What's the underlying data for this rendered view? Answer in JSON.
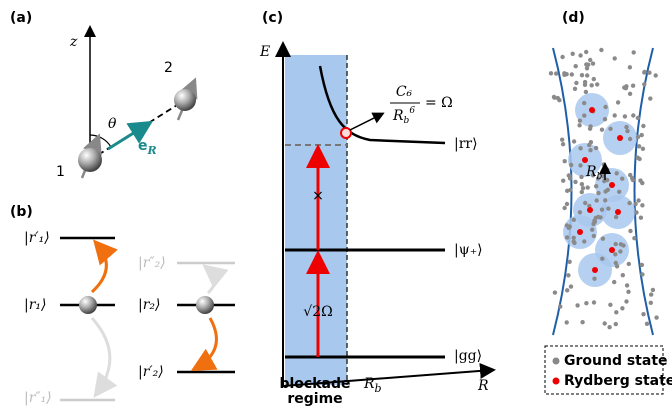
{
  "panels": {
    "a": "(a)",
    "b": "(b)",
    "c": "(c)",
    "d": "(d)"
  },
  "a": {
    "z": "z",
    "theta": "θ",
    "atom2": "2",
    "atom1": "1",
    "eR": {
      "base": "e",
      "sub": "R"
    }
  },
  "b": {
    "left": [
      "|r′₁⟩",
      "|r₁⟩",
      "|r″₁⟩"
    ],
    "right": [
      "|r″₂⟩",
      "|r₂⟩",
      "|r′₂⟩"
    ]
  },
  "c": {
    "E": "E",
    "R": "R",
    "rr": "|rr⟩",
    "psi": "|ψ₊⟩",
    "gg": "|gg⟩",
    "rabi": "√2Ω",
    "cross": "×",
    "formula": {
      "num": "C₆",
      "den": {
        "base": "R",
        "sub": "b",
        "sup": "6"
      },
      "rhs": "= Ω"
    },
    "blockade": [
      "blockade",
      "regime"
    ],
    "Rb": {
      "base": "R",
      "sub": "b"
    }
  },
  "d": {
    "Rb": {
      "base": "R",
      "sub": "b"
    },
    "legend": [
      "Ground state",
      "Rydberg state"
    ]
  }
}
